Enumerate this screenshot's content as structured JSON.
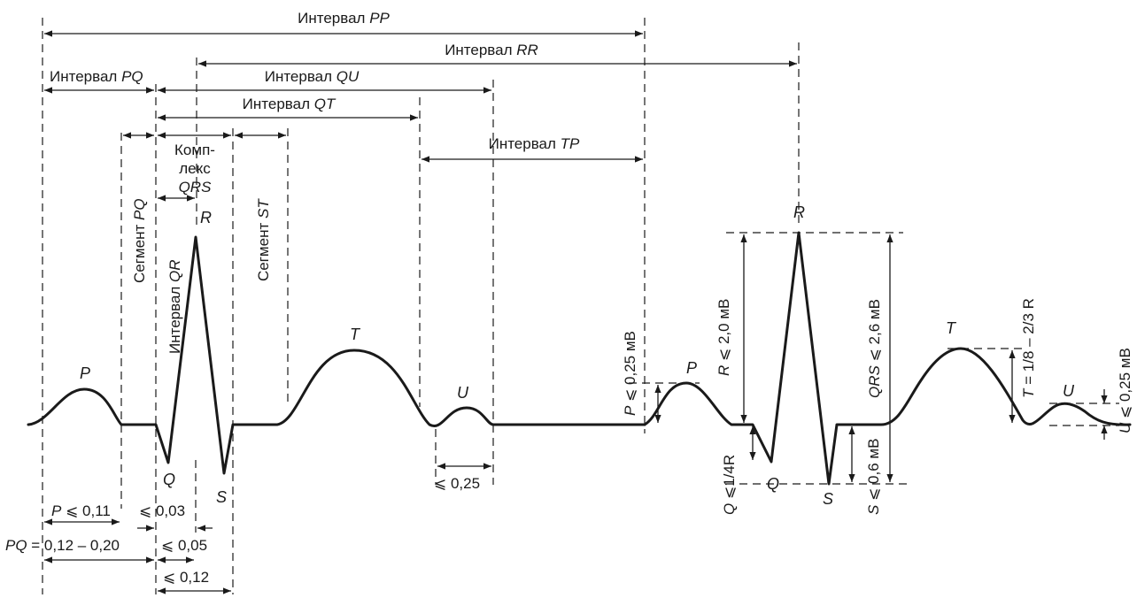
{
  "intervals": {
    "pp": {
      "prefix": "Интервал ",
      "name": "PP"
    },
    "rr": {
      "prefix": "Интервал ",
      "name": "RR"
    },
    "pq": {
      "prefix": "Интервал ",
      "name": "PQ"
    },
    "qu": {
      "prefix": "Интервал ",
      "name": "QU"
    },
    "qt": {
      "prefix": "Интервал ",
      "name": "QT"
    },
    "tp": {
      "prefix": "Интервал ",
      "name": "TP"
    },
    "qr": {
      "prefix": "Интервал ",
      "name": "QR"
    }
  },
  "segments": {
    "pq": {
      "prefix": "Сегмент ",
      "name": "PQ"
    },
    "st": {
      "prefix": "Сегмент ",
      "name": "ST"
    }
  },
  "complex": {
    "line1": "Комп-",
    "line2": "лекс",
    "line3": "QRS"
  },
  "waves": {
    "p": "P",
    "q": "Q",
    "r": "R",
    "s": "S",
    "t": "T",
    "u": "U"
  },
  "durations": {
    "p": {
      "name": "P",
      "value": " ⩽ 0,11"
    },
    "qr": "⩽ 0,03",
    "pq": {
      "name": "PQ",
      "value": " = 0,12 – 0,20"
    },
    "qrs": "⩽ 0,05",
    "qrs_total": "⩽ 0,12",
    "u": "⩽ 0,25"
  },
  "amplitudes": {
    "p": {
      "name": "P",
      "value": " ⩽ 0,25 мВ"
    },
    "r": {
      "name": "R",
      "value": " ⩽ 2,0 мВ"
    },
    "q": {
      "name": "Q",
      "value": " ⩽1/4R"
    },
    "qrs": {
      "name": "QRS",
      "value": " ⩽ 2,6 мВ"
    },
    "s": {
      "name": "S",
      "value": " ⩽ 0,6 мВ"
    },
    "t": {
      "name": "T",
      "value": " = 1/8 – 2/3 R"
    },
    "u": {
      "name": "U",
      "value": " ⩽ 0,25 мВ"
    }
  }
}
